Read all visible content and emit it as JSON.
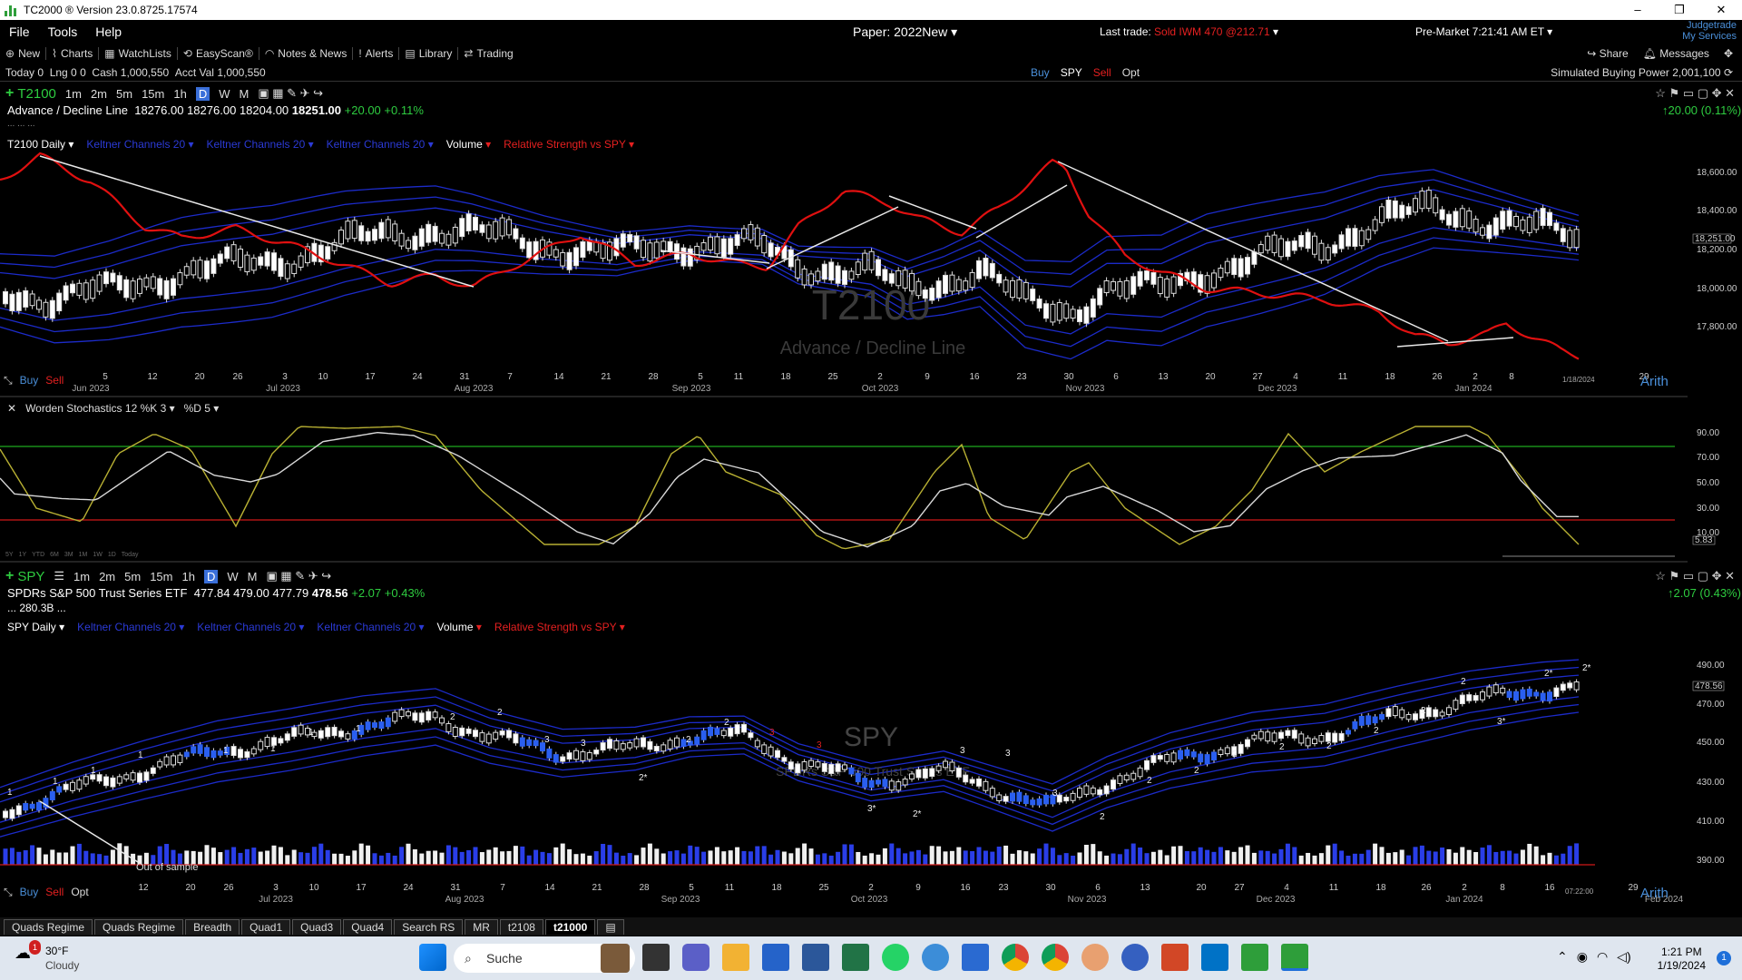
{
  "window": {
    "title": "TC2000 ® Version 23.0.8725.17574"
  },
  "menu": {
    "items": [
      "File",
      "Tools",
      "Help"
    ],
    "account": "Paper: 2022New",
    "last_trade_label": "Last trade:",
    "last_trade_value": "Sold IWM 470 @212.71",
    "premarket": "Pre-Market 7:21:41 AM ET",
    "judgetrade": "Judgetrade",
    "my_services": "My Services"
  },
  "toolbar": {
    "new": "New",
    "charts": "Charts",
    "watchlists": "WatchLists",
    "easyscan": "EasyScan®",
    "notes": "Notes & News",
    "alerts": "Alerts",
    "library": "Library",
    "trading": "Trading",
    "share": "Share",
    "messages": "Messages"
  },
  "status": {
    "today": "Today 0",
    "lng": "Lng 0 0",
    "cash_label": "Cash",
    "cash": "1,000,550",
    "acct_label": "Acct Val",
    "acct": "1,000,550",
    "buy": "Buy",
    "sym": "SPY",
    "sell": "Sell",
    "opt": "Opt",
    "buying_power": "Simulated Buying Power 2,001,100"
  },
  "pane1": {
    "symbol": "T2100",
    "timeframes": [
      "1m",
      "2m",
      "5m",
      "15m",
      "1h",
      "D",
      "W",
      "M"
    ],
    "name": "Advance / Decline Line",
    "open": "18276.00",
    "high": "18276.00",
    "low": "18204.00",
    "close": "18251.00",
    "change": "+20.00",
    "pct": "+0.11%",
    "right_change": "20.00 (0.11%)",
    "dots": "... ... ...",
    "chart_label": "T2100 Daily",
    "indicators": [
      "Keltner Channels 20",
      "Keltner Channels 20",
      "Keltner Channels 20",
      "Volume",
      "Relative Strength vs SPY"
    ],
    "watermark": "T2100",
    "watermark_sub": "Advance / Decline Line",
    "price_ticks": [
      "18,600.00",
      "18,400.00",
      "18,200.00",
      "18,000.00",
      "17,800.00"
    ],
    "last_price": "18,251.00",
    "buy": "Buy",
    "sell": "Sell",
    "arith": "Arith",
    "date_last": "1/18/2024"
  },
  "stoch": {
    "label": "Worden Stochastics 12 %K 3",
    "d_label": "%D 5",
    "ticks": [
      "90.00",
      "70.00",
      "50.00",
      "30.00",
      "10.00"
    ],
    "last": "5.83",
    "ranges": [
      "5Y",
      "1Y",
      "YTD",
      "6M",
      "3M",
      "1M",
      "1W",
      "1D",
      "Today"
    ]
  },
  "pane2": {
    "symbol": "SPY",
    "timeframes": [
      "1m",
      "2m",
      "5m",
      "15m",
      "1h",
      "D",
      "W",
      "M"
    ],
    "name": "SPDRs S&P 500 Trust Series ETF",
    "open": "477.84",
    "high": "479.00",
    "low": "477.79",
    "close": "478.56",
    "change": "+2.07",
    "pct": "+0.43%",
    "right_change": "2.07 (0.43%)",
    "mcap": "... 280.3B ...",
    "chart_label": "SPY Daily",
    "indicators": [
      "Keltner Channels 20",
      "Keltner Channels 20",
      "Keltner Channels 20",
      "Volume",
      "Relative Strength vs SPY"
    ],
    "watermark": "SPY",
    "watermark_sub": "SPDRs S&P 500 Trust Series ETF",
    "price_ticks": [
      "490.00",
      "470.00",
      "450.00",
      "430.00",
      "410.00",
      "390.00"
    ],
    "last_price": "478.56",
    "out_of_sample": "Out of sample",
    "buy": "Buy",
    "sell": "Sell",
    "opt": "Opt",
    "arith": "Arith",
    "time_last": "07:22:00"
  },
  "axis1": {
    "days": [
      "5",
      "12",
      "20",
      "26",
      "3",
      "10",
      "17",
      "24",
      "31",
      "7",
      "14",
      "21",
      "28",
      "5",
      "11",
      "18",
      "25",
      "2",
      "9",
      "16",
      "23",
      "30",
      "6",
      "13",
      "20",
      "27",
      "4",
      "11",
      "18",
      "26",
      "2",
      "8",
      "29"
    ],
    "months": [
      "Jun 2023",
      "Jul 2023",
      "Aug 2023",
      "Sep 2023",
      "Oct 2023",
      "Nov 2023",
      "Dec 2023",
      "Jan 2024"
    ]
  },
  "axis2": {
    "days": [
      "12",
      "20",
      "26",
      "3",
      "10",
      "17",
      "24",
      "31",
      "7",
      "14",
      "21",
      "28",
      "5",
      "11",
      "18",
      "25",
      "2",
      "9",
      "16",
      "23",
      "30",
      "6",
      "13",
      "20",
      "27",
      "4",
      "11",
      "18",
      "26",
      "2",
      "8",
      "16",
      "29"
    ],
    "months": [
      "Jul 2023",
      "Aug 2023",
      "Sep 2023",
      "Oct 2023",
      "Nov 2023",
      "Dec 2023",
      "Jan 2024",
      "Feb 2024"
    ]
  },
  "tabs": [
    "Quads Regime",
    "Quads Regime",
    "Breadth",
    "Quad1",
    "Quad3",
    "Quad4",
    "Search RS",
    "MR",
    "t2108",
    "t21000"
  ],
  "active_tab": "t21000",
  "taskbar": {
    "temp": "30°F",
    "cond": "Cloudy",
    "search": "Suche",
    "time": "1:21 PM",
    "date": "1/19/2024",
    "badge": "1"
  },
  "colors": {
    "accent_green": "#2ecc40",
    "sell_red": "#e52020",
    "keltner_blue": "#2b3ad6",
    "rs_line": "#e01010"
  }
}
